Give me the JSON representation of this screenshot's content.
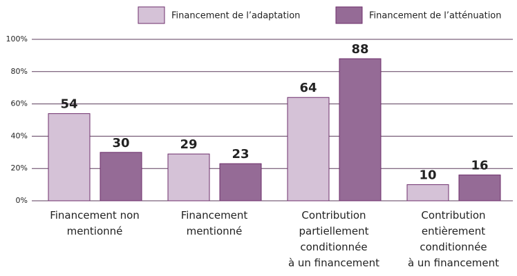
{
  "chart_data": {
    "type": "bar",
    "categories": [
      "Financement non\nmentionné",
      "Financement\nmentionné",
      "Contribution\npartiellement\nconditionnée\nà un financement",
      "Contribution\nentièrement\nconditionnée\nà un financement"
    ],
    "series": [
      {
        "name": "Financement de l’adaptation",
        "color": "#d5c2d7",
        "values": [
          54,
          29,
          64,
          10
        ]
      },
      {
        "name": "Financement de l’atténuation",
        "color": "#956b96",
        "values": [
          30,
          23,
          88,
          16
        ]
      }
    ],
    "ylim": [
      0,
      100
    ],
    "yticks": [
      {
        "value": 0,
        "label": "0%"
      },
      {
        "value": 20,
        "label": "20%"
      },
      {
        "value": 40,
        "label": "40%"
      },
      {
        "value": 60,
        "label": "60%"
      },
      {
        "value": 80,
        "label": "80%"
      },
      {
        "value": 100,
        "label": "100%"
      }
    ],
    "grid": true,
    "legend": "top"
  }
}
